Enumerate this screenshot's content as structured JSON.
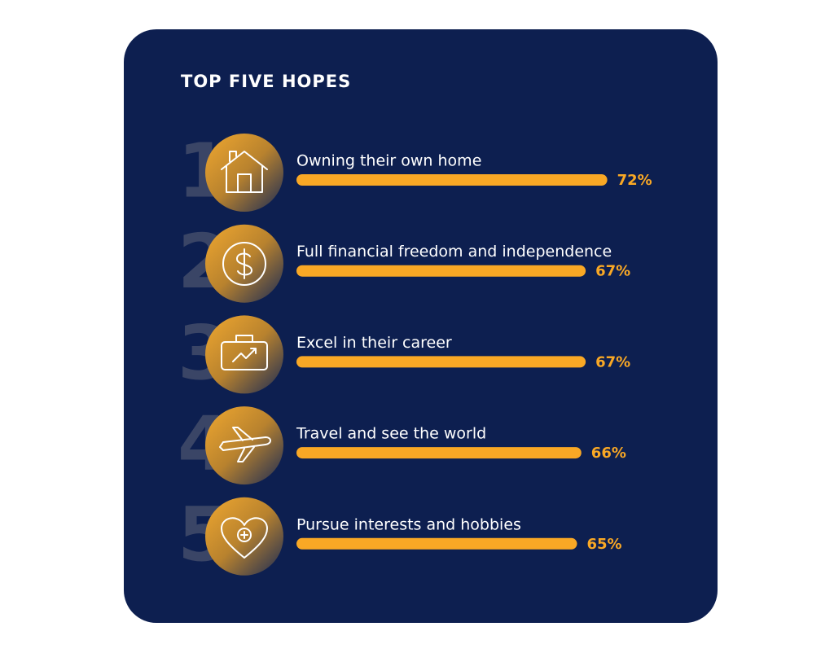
{
  "chart_data": {
    "type": "hbar",
    "title": "TOP FIVE HOPES",
    "ranks": [
      1,
      2,
      3,
      4,
      5
    ],
    "categories": [
      "Owning their own home",
      "Full financial freedom and independence",
      "Excel in their career",
      "Travel and see the world",
      "Pursue interests and hobbies"
    ],
    "values": [
      72,
      67,
      67,
      66,
      65
    ],
    "value_labels": [
      "72%",
      "67%",
      "67%",
      "66%",
      "65%"
    ],
    "color": "#f9a825"
  }
}
